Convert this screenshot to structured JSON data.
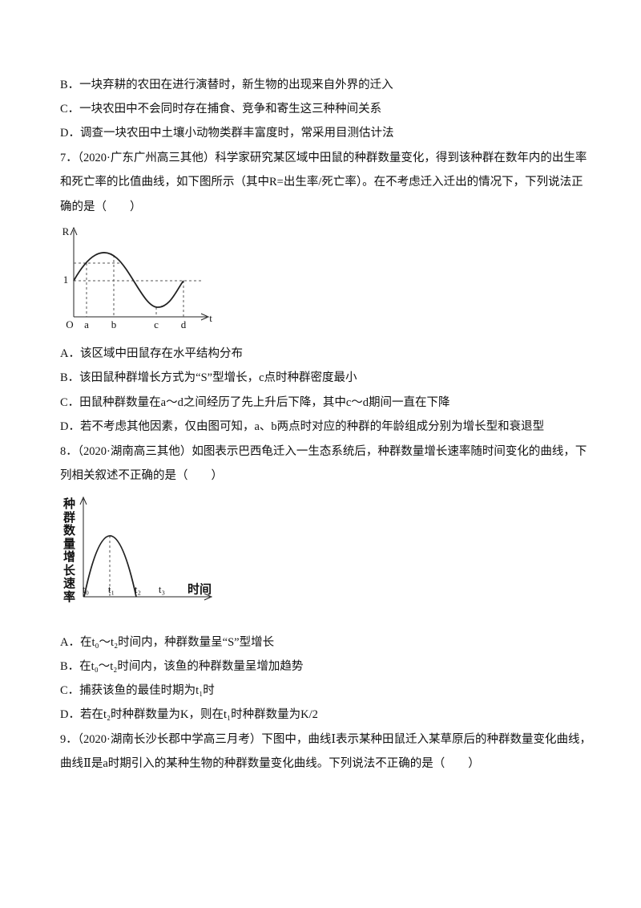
{
  "q6": {
    "options": [
      "B．一块弃耕的农田在进行演替时，新生物的出现来自外界的迁入",
      "C．一块农田中不会同时存在捕食、竞争和寄生这三种种间关系",
      "D．调查一块农田中土壤小动物类群丰富度时，常采用目测估计法"
    ]
  },
  "q7": {
    "stem_lines": [
      "7．（2020·广东广州高三其他）科学家研究某区域中田鼠的种群数量变化，得到该种群在数年内的出生率",
      "和死亡率的比值曲线，如下图所示（其中R=出生率/死亡率）。在不考虑迁入迁出的情况下，下列说法正",
      "确的是（　　）"
    ],
    "figure": {
      "y_label": "R",
      "one_label": "1",
      "origin_label": "O",
      "x_points": [
        "a",
        "b",
        "c",
        "d"
      ],
      "x_label": "t"
    },
    "options": [
      "A．该区域中田鼠存在水平结构分布",
      "B．该田鼠种群增长方式为“S”型增长，c点时种群密度最小",
      "C．田鼠种群数量在a～d之间经历了先上升后下降，其中c～d期间一直在下降",
      "D．若不考虑其他因素，仅由图可知，a、b两点时对应的种群的年龄组成分别为增长型和衰退型"
    ]
  },
  "q8": {
    "stem_lines": [
      "8．（2020·湖南高三其他）如图表示巴西龟迁入一生态系统后，种群数量增长速率随时间变化的曲线，下",
      "列相关叙述不正确的是（　　）"
    ],
    "figure": {
      "y_label": "种群数量增长速率",
      "x_points": [
        "t₀",
        "t₁",
        "t₂",
        "t₃"
      ],
      "x_label": "时间"
    },
    "options": [
      "A．在t₀～t₂时间内，种群数量呈“S”型增长",
      "B．在t₀～t₂时间内，该鱼的种群数量呈增加趋势",
      "C．捕获该鱼的最佳时期为t₁时",
      "D．若在t₂时种群数量为K，则在t₁时种群数量为K/2"
    ]
  },
  "q9": {
    "stem_lines": [
      "9．（2020·湖南长沙长郡中学高三月考）下图中，曲线Ⅰ表示某种田鼠迁入某草原后的种群数量变化曲线，",
      "曲线Ⅱ是a时期引入的某种生物的种群数量变化曲线。下列说法不正确的是（　　）"
    ]
  }
}
